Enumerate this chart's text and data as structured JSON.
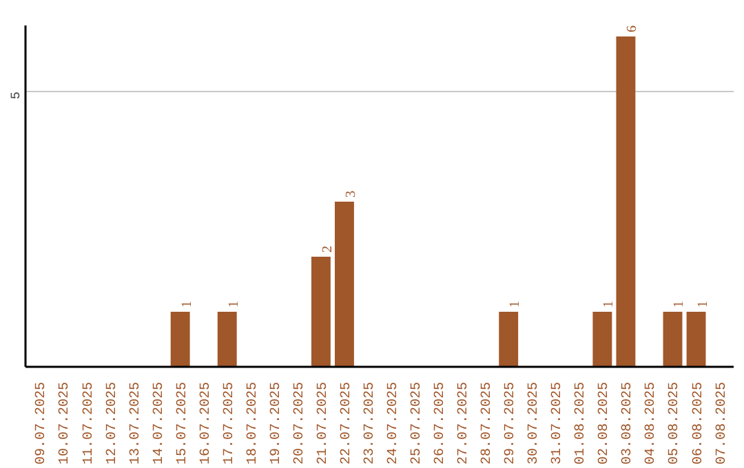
{
  "chart_data": {
    "type": "bar",
    "categories": [
      "09.07.2025",
      "10.07.2025",
      "11.07.2025",
      "12.07.2025",
      "13.07.2025",
      "14.07.2025",
      "15.07.2025",
      "16.07.2025",
      "17.07.2025",
      "18.07.2025",
      "19.07.2025",
      "20.07.2025",
      "21.07.2025",
      "22.07.2025",
      "23.07.2025",
      "24.07.2025",
      "25.07.2025",
      "26.07.2025",
      "27.07.2025",
      "28.07.2025",
      "29.07.2025",
      "30.07.2025",
      "31.07.2025",
      "01.08.2025",
      "02.08.2025",
      "03.08.2025",
      "04.08.2025",
      "05.08.2025",
      "06.08.2025",
      "07.08.2025"
    ],
    "values": [
      0,
      0,
      0,
      0,
      0,
      0,
      1,
      0,
      1,
      0,
      0,
      0,
      2,
      3,
      0,
      0,
      0,
      0,
      0,
      0,
      1,
      0,
      0,
      0,
      1,
      6,
      0,
      1,
      1,
      0
    ],
    "value_labels": [
      null,
      null,
      null,
      null,
      null,
      null,
      "1",
      null,
      "1",
      null,
      null,
      null,
      "2",
      "3",
      null,
      null,
      null,
      null,
      null,
      null,
      "1",
      null,
      null,
      null,
      "1",
      "6",
      null,
      "1",
      "1",
      null
    ],
    "color": "#a0572a",
    "ylim": [
      0,
      6.2
    ],
    "yticks": [
      5
    ],
    "grid": "y"
  }
}
